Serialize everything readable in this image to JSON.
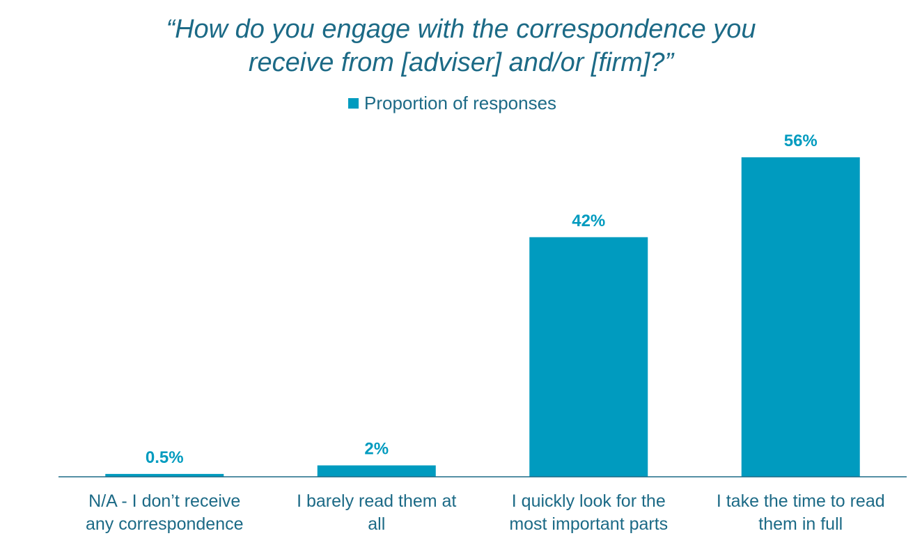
{
  "colors": {
    "bar": "#009bbf",
    "text": "#1c6a86",
    "axis": "#1c6a86"
  },
  "chart_data": {
    "type": "bar",
    "title": "“How do you engage with the correspondence you receive from [adviser] and/or [firm]?”",
    "title_lines": [
      "“How do you engage with the correspondence you",
      "receive from [adviser] and/or [firm]?”"
    ],
    "legend": "Proportion of responses",
    "legend_position": "top-center",
    "series": [
      {
        "name": "Proportion of responses",
        "values": [
          0.5,
          2,
          42,
          56
        ],
        "data_labels": [
          "0.5%",
          "2%",
          "42%",
          "56%"
        ]
      }
    ],
    "categories": [
      [
        "N/A - I don’t receive",
        "any correspondence"
      ],
      [
        "I barely read them at",
        "all"
      ],
      [
        "I quickly look for the",
        "most important parts"
      ],
      [
        "I take the time to read",
        "them in full"
      ]
    ],
    "ylim": [
      0,
      60
    ],
    "grid": false,
    "xlabel": "",
    "ylabel": ""
  }
}
